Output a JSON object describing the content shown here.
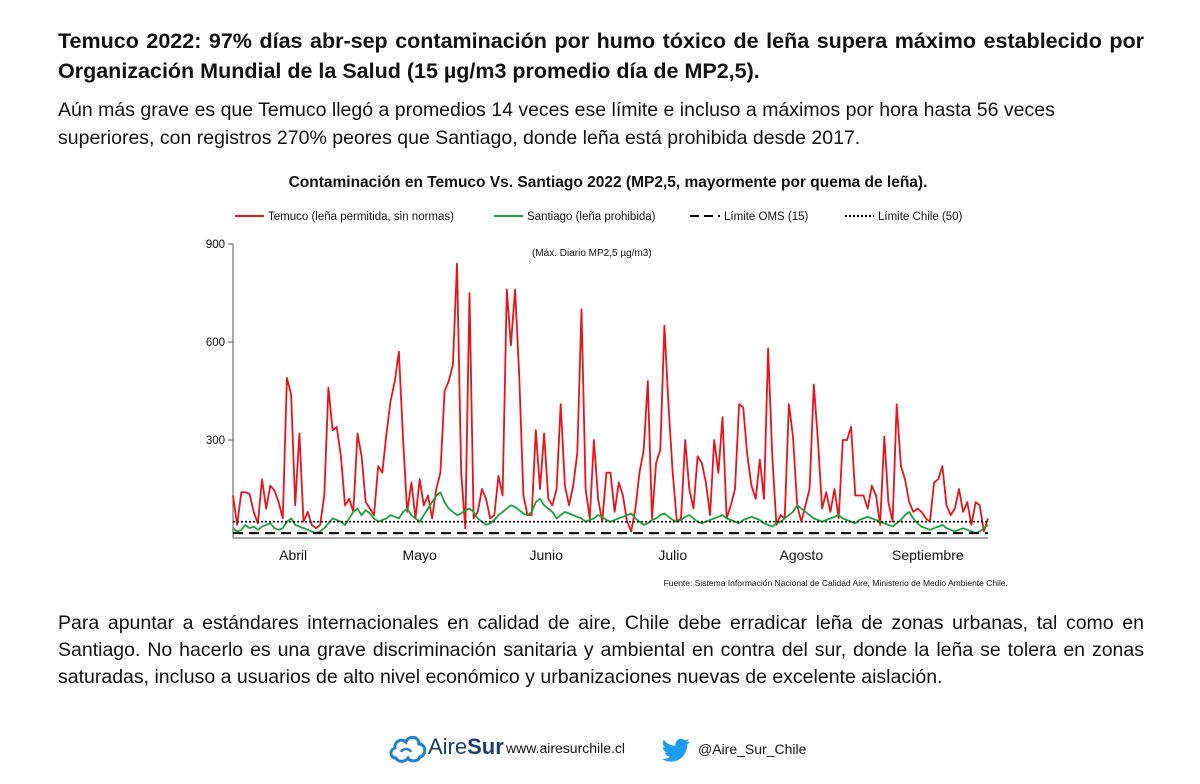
{
  "headline": "Temuco 2022: 97% días abr-sep contaminación por humo tóxico de leña supera máximo establecido por Organización Mundial de la Salud (15 µg/m3 promedio día de MP2,5).",
  "subhead": "Aún más grave es que Temuco llegó a promedios 14 veces ese límite e incluso a máximos por hora hasta 56 veces superiores, con registros 270% peores que Santiago, donde leña está prohibida desde 2017.",
  "footer_text": "Para apuntar a estándares internacionales en calidad de aire, Chile debe erradicar leña de zonas urbanas, tal como en Santiago. No hacerlo es una grave discriminación sanitaria y ambiental en contra del sur, donde la leña se tolera en zonas saturadas, incluso a usuarios de alto nivel económico y urbanizaciones nuevas de excelente aislación.",
  "brand": {
    "name_light": "Aire",
    "name_bold": "Sur",
    "url": "www.airesurchile.cl",
    "twitter": "@Aire_Sur_Chile",
    "icon": "cloud-icon",
    "twitter_icon": "twitter-bird-icon",
    "color": "#1a3f6e",
    "twitter_color": "#1d9bf0"
  },
  "chart_data": {
    "type": "line",
    "title": "Contaminación en Temuco Vs. Santiago 2022 (MP2,5, mayormente por quema de leña).",
    "annotation": "(Máx. Diario MP2,5 µg/m3)",
    "source": "Fuente: Sistema Información Nacional de Calidad Aire, Ministerio de Medio Ambiente Chile.",
    "xlabel": "",
    "ylabel": "",
    "ylim": [
      0,
      900
    ],
    "yticks": [
      900,
      600,
      300
    ],
    "xlim": [
      1,
      183
    ],
    "month_labels": [
      {
        "label": "Abril",
        "center_day": 15.5
      },
      {
        "label": "Mayo",
        "center_day": 46
      },
      {
        "label": "Junio",
        "center_day": 76.5
      },
      {
        "label": "Julio",
        "center_day": 107
      },
      {
        "label": "Agosto",
        "center_day": 138
      },
      {
        "label": "Septiembre",
        "center_day": 168.5
      }
    ],
    "legend_placement": "top",
    "series": [
      {
        "name": "Temuco (leña permitida, sin normas)",
        "color": "#e8141b",
        "style": "solid",
        "x": [
          1,
          2,
          3,
          4,
          5,
          6,
          7,
          8,
          9,
          10,
          11,
          12,
          13,
          14,
          15,
          16,
          17,
          18,
          19,
          20,
          21,
          22,
          23,
          24,
          25,
          26,
          27,
          28,
          29,
          30,
          31,
          32,
          33,
          34,
          35,
          36,
          37,
          38,
          39,
          40,
          41,
          42,
          43,
          44,
          45,
          46,
          47,
          48,
          49,
          50,
          51,
          52,
          53,
          54,
          55,
          56,
          57,
          58,
          59,
          60,
          61,
          62,
          63,
          64,
          65,
          66,
          67,
          68,
          69,
          70,
          71,
          72,
          73,
          74,
          75,
          76,
          77,
          78,
          79,
          80,
          81,
          82,
          83,
          84,
          85,
          86,
          87,
          88,
          89,
          90,
          91,
          92,
          93,
          94,
          95,
          96,
          97,
          98,
          99,
          100,
          101,
          102,
          103,
          104,
          105,
          106,
          107,
          108,
          109,
          110,
          111,
          112,
          113,
          114,
          115,
          116,
          117,
          118,
          119,
          120,
          121,
          122,
          123,
          124,
          125,
          126,
          127,
          128,
          129,
          130,
          131,
          132,
          133,
          134,
          135,
          136,
          137,
          138,
          139,
          140,
          141,
          142,
          143,
          144,
          145,
          146,
          147,
          148,
          149,
          150,
          151,
          152,
          153,
          154,
          155,
          156,
          157,
          158,
          159,
          160,
          161,
          162,
          163,
          164,
          165,
          166,
          167,
          168,
          169,
          170,
          171,
          172,
          173,
          174,
          175,
          176,
          177,
          178,
          179,
          180,
          181,
          182,
          183
        ],
        "values": [
          130,
          40,
          140,
          140,
          135,
          80,
          45,
          180,
          90,
          160,
          145,
          110,
          60,
          490,
          440,
          100,
          320,
          50,
          80,
          40,
          30,
          40,
          130,
          460,
          330,
          340,
          250,
          100,
          120,
          80,
          320,
          250,
          110,
          90,
          70,
          220,
          200,
          320,
          420,
          480,
          570,
          300,
          80,
          170,
          60,
          180,
          100,
          130,
          60,
          150,
          200,
          450,
          480,
          530,
          840,
          200,
          30,
          750,
          60,
          80,
          150,
          120,
          60,
          70,
          190,
          130,
          760,
          590,
          760,
          500,
          130,
          70,
          70,
          330,
          150,
          320,
          120,
          100,
          150,
          410,
          160,
          100,
          160,
          260,
          700,
          150,
          60,
          300,
          120,
          50,
          200,
          200,
          80,
          170,
          130,
          50,
          20,
          90,
          200,
          270,
          480,
          60,
          230,
          270,
          650,
          400,
          200,
          50,
          60,
          300,
          150,
          90,
          250,
          230,
          170,
          70,
          300,
          200,
          370,
          60,
          100,
          150,
          410,
          400,
          250,
          160,
          120,
          240,
          120,
          580,
          250,
          40,
          70,
          60,
          410,
          310,
          100,
          50,
          100,
          150,
          470,
          300,
          90,
          140,
          80,
          150,
          60,
          300,
          300,
          340,
          130,
          130,
          130,
          90,
          160,
          130,
          40,
          310,
          110,
          50,
          410,
          220,
          180,
          110,
          80,
          90,
          80,
          60,
          50,
          170,
          180,
          220,
          100,
          70,
          90,
          150,
          80,
          110,
          40,
          110,
          100,
          20,
          60
        ],
        "values_min": 0,
        "values_max": 840
      },
      {
        "name": "Santiago (leña prohibida)",
        "color": "#1aa33a",
        "style": "solid",
        "values": [
          30,
          20,
          25,
          40,
          30,
          35,
          25,
          35,
          40,
          45,
          30,
          25,
          30,
          50,
          60,
          40,
          35,
          30,
          25,
          20,
          15,
          20,
          30,
          45,
          60,
          55,
          50,
          40,
          60,
          80,
          90,
          70,
          85,
          75,
          60,
          50,
          55,
          60,
          70,
          65,
          60,
          80,
          90,
          70,
          60,
          50,
          70,
          90,
          110,
          130,
          140,
          110,
          90,
          80,
          70,
          75,
          85,
          90,
          80,
          60,
          50,
          40,
          45,
          55,
          70,
          80,
          90,
          100,
          95,
          85,
          75,
          70,
          80,
          110,
          120,
          100,
          90,
          80,
          60,
          70,
          80,
          75,
          70,
          65,
          60,
          50,
          55,
          60,
          70,
          65,
          55,
          50,
          55,
          60,
          65,
          70,
          75,
          60,
          50,
          40,
          45,
          55,
          60,
          70,
          75,
          65,
          55,
          50,
          55,
          65,
          70,
          60,
          50,
          45,
          50,
          55,
          60,
          65,
          70,
          60,
          55,
          50,
          45,
          55,
          60,
          65,
          60,
          55,
          45,
          40,
          35,
          45,
          50,
          60,
          70,
          80,
          100,
          90,
          80,
          70,
          60,
          55,
          50,
          55,
          60,
          65,
          70,
          60,
          55,
          50,
          45,
          55,
          60,
          65,
          60,
          55,
          50,
          45,
          40,
          35,
          45,
          55,
          70,
          80,
          60,
          45,
          35,
          30,
          25,
          30,
          35,
          40,
          30,
          25,
          20,
          25,
          30,
          25,
          20,
          15,
          20,
          30,
          40
        ]
      },
      {
        "name": "Límite OMS (15)",
        "color": "#000000",
        "style": "dashed",
        "value": 15
      },
      {
        "name": "Límite Chile (50)",
        "color": "#000000",
        "style": "dotted",
        "value": 50
      }
    ]
  }
}
